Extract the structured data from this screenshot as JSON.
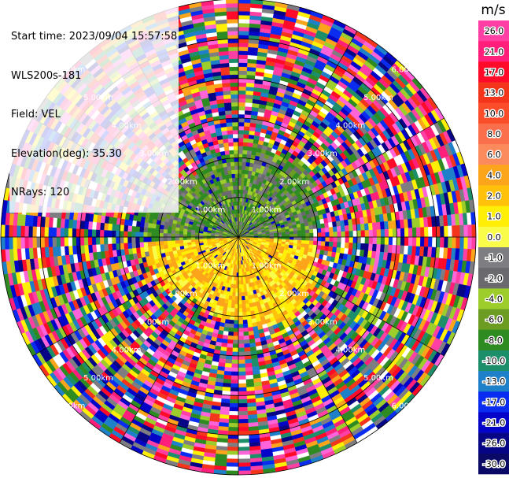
{
  "header": {
    "start_time": "Start time: 2023/09/04 15:57:58",
    "instrument": "WLS200s-181",
    "field": "Field: VEL",
    "elevation": "Elevation(deg): 35.30",
    "nrays": "NRays: 120"
  },
  "chart_data": {
    "type": "heatmap",
    "projection": "polar-ppi",
    "field": "VEL",
    "unit_label": "m/s",
    "nrays": 120,
    "range_ring_labels": [
      "1.00km",
      "2.00km",
      "3.00km",
      "4.00km",
      "5.00km",
      "6.00km"
    ],
    "range_rings_km": [
      1,
      2,
      3,
      4,
      5,
      6
    ],
    "grid": true,
    "spoke_directions_deg": [
      0,
      30,
      60,
      90,
      120,
      150,
      180,
      210,
      240,
      270,
      300,
      330
    ],
    "max_range_km": 6.0,
    "coherent_signal_radius_km": 2.6,
    "pattern_north_half": "green / gray (negative, -1 to -6 m/s)",
    "pattern_south_half": "yellow / orange (positive, 2 to 6 m/s)",
    "outer_region": "noise (random colors)",
    "colorbar": {
      "label": "m/s",
      "ticks": [
        "26.0",
        "21.0",
        "17.0",
        "13.0",
        "10.0",
        "8.0",
        "6.0",
        "4.0",
        "2.0",
        "1.0",
        "0.0",
        "-1.0",
        "-2.0",
        "-4.0",
        "-6.0",
        "-8.0",
        "-10.0",
        "-13.0",
        "-17.0",
        "-21.0",
        "-26.0",
        "-30.0"
      ],
      "bins": [
        {
          "lo": 26,
          "hi": 30,
          "color": "#ff3fa3"
        },
        {
          "lo": 21,
          "hi": 26,
          "color": "#ff1f7a"
        },
        {
          "lo": 17,
          "hi": 21,
          "color": "#ff0a28"
        },
        {
          "lo": 13,
          "hi": 17,
          "color": "#f4351b"
        },
        {
          "lo": 10,
          "hi": 13,
          "color": "#fb4d2a"
        },
        {
          "lo": 8,
          "hi": 10,
          "color": "#fb6f4d"
        },
        {
          "lo": 6,
          "hi": 8,
          "color": "#fb8a5d"
        },
        {
          "lo": 4,
          "hi": 6,
          "color": "#fca41a"
        },
        {
          "lo": 2,
          "hi": 4,
          "color": "#ffc10a"
        },
        {
          "lo": 1,
          "hi": 2,
          "color": "#ffee05"
        },
        {
          "lo": 0,
          "hi": 1,
          "color": "#f9fc49"
        },
        {
          "lo": -1,
          "hi": 0,
          "color": "#7d7d82"
        },
        {
          "lo": -2,
          "hi": -1,
          "color": "#6a6a6e"
        },
        {
          "lo": -4,
          "hi": -2,
          "color": "#9dcd2a"
        },
        {
          "lo": -6,
          "hi": -4,
          "color": "#6d9c22"
        },
        {
          "lo": -8,
          "hi": -6,
          "color": "#2e8b22"
        },
        {
          "lo": -10,
          "hi": -8,
          "color": "#1c8f6a"
        },
        {
          "lo": -13,
          "hi": -10,
          "color": "#1e80c8"
        },
        {
          "lo": -17,
          "hi": -13,
          "color": "#0a2cf0"
        },
        {
          "lo": -21,
          "hi": -17,
          "color": "#0404c8"
        },
        {
          "lo": -26,
          "hi": -21,
          "color": "#050585"
        },
        {
          "lo": -30,
          "hi": -26,
          "color": "#0a0a66"
        }
      ]
    },
    "noise_palette": [
      "#ff3fa3",
      "#ff1f7a",
      "#ff0a28",
      "#ffee05",
      "#9dcd2a",
      "#2e8b22",
      "#1c8f6a",
      "#1e80c8",
      "#0a2cf0",
      "#0404c8",
      "#050585",
      "#ffffff",
      "#7d7d82",
      "#fca41a",
      "#ff63d9",
      "#f4351b"
    ]
  }
}
